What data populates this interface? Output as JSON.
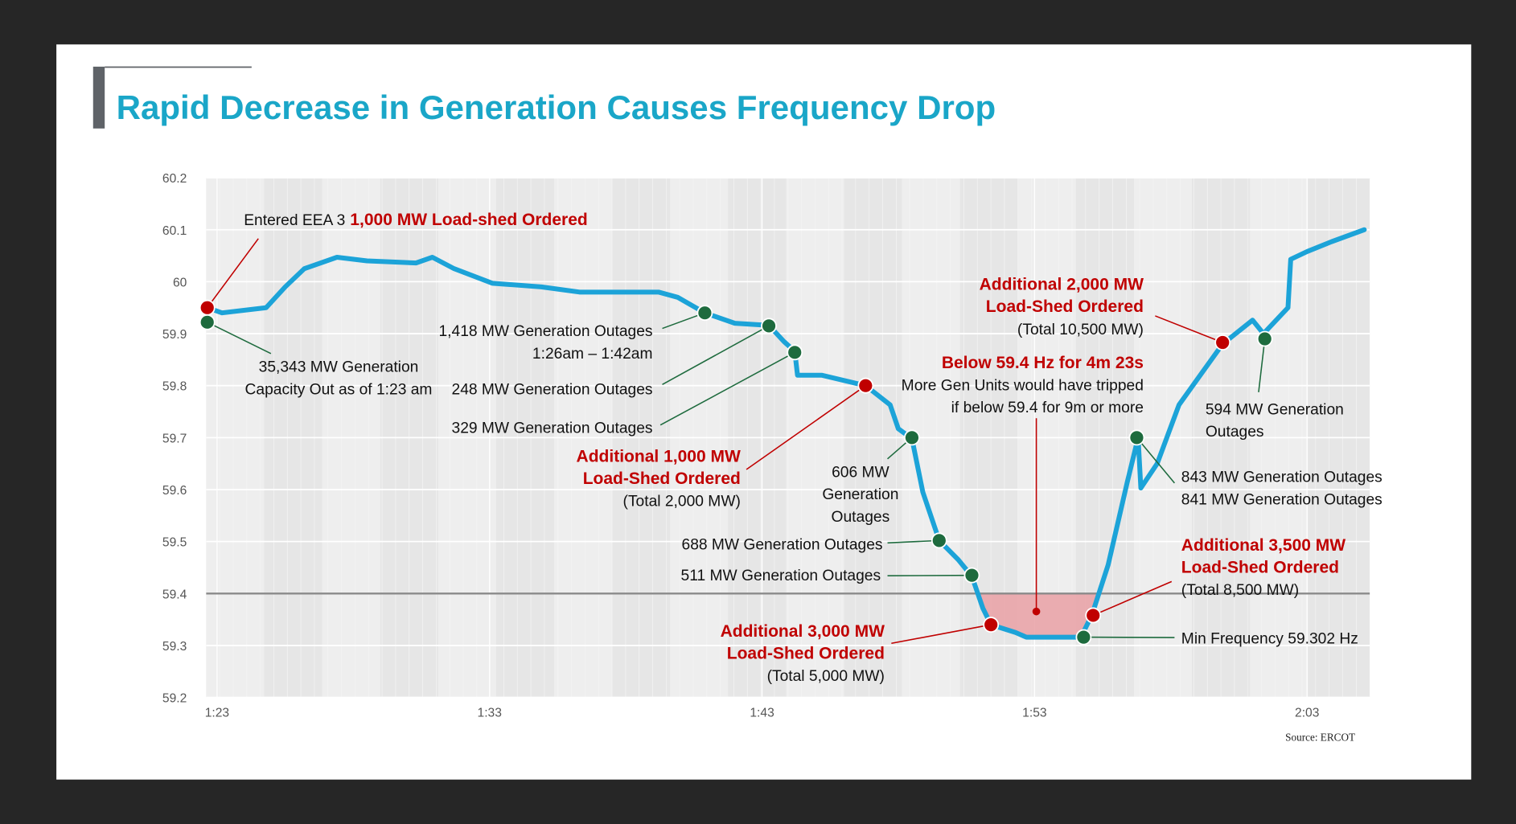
{
  "chart_data": {
    "type": "line",
    "title": "Rapid Decrease in Generation Causes Frequency Drop",
    "source": "Source: ERCOT",
    "xlim": [
      82.6,
      125.3
    ],
    "ylim": [
      59.2,
      60.2
    ],
    "xticks": [
      {
        "value": 83,
        "label": "1:23"
      },
      {
        "value": 93,
        "label": "1:33"
      },
      {
        "value": 103,
        "label": "1:43"
      },
      {
        "value": 113,
        "label": "1:53"
      },
      {
        "value": 123,
        "label": "2:03"
      }
    ],
    "yticks": [
      59.2,
      59.3,
      59.4,
      59.5,
      59.6,
      59.7,
      59.8,
      59.9,
      60,
      60.1,
      60.2
    ],
    "grid": true,
    "series": [
      {
        "color": "#1ca3d8",
        "x": [
          82.64,
          83.18,
          84.8,
          85.5,
          86.2,
          87.4,
          88.5,
          90.3,
          90.9,
          91.7,
          93.1,
          94.9,
          96.3,
          99.2,
          99.9,
          100.9,
          102.0,
          103.25,
          103.8,
          104.2,
          104.3,
          105.2,
          106.8,
          107.7,
          108.0,
          108.5,
          108.9,
          109.5,
          110.2,
          110.7,
          111.1,
          111.4,
          112.3,
          112.7,
          114.7,
          115.1,
          115.7,
          116.4,
          116.8,
          116.9,
          117.5,
          118.3,
          119.2,
          119.9,
          121.0,
          121.4,
          122.3,
          122.4,
          123.0,
          123.9,
          125.1
        ],
        "values": [
          59.95,
          59.94,
          59.95,
          59.99,
          60.025,
          60.047,
          60.04,
          60.036,
          60.047,
          60.025,
          59.997,
          59.99,
          59.98,
          59.98,
          59.97,
          59.94,
          59.92,
          59.916,
          59.885,
          59.866,
          59.82,
          59.82,
          59.8,
          59.763,
          59.717,
          59.698,
          59.595,
          59.502,
          59.465,
          59.433,
          59.372,
          59.34,
          59.325,
          59.316,
          59.316,
          59.358,
          59.455,
          59.614,
          59.7,
          59.603,
          59.65,
          59.763,
          59.829,
          59.88,
          59.926,
          59.9,
          59.95,
          60.043,
          60.058,
          60.077,
          60.1
        ]
      }
    ],
    "threshold": {
      "value": 59.4,
      "color": "#8a8a8a",
      "shade": "#e9a0a4"
    },
    "events": [
      {
        "x": 82.64,
        "y": 59.95,
        "color": "#c00000",
        "label": [
          [
            {
              "text": "Entered EEA 3"
            },
            {
              "text": "1,000 MW Load-shed Ordered",
              "color": "#c00000"
            }
          ]
        ]
      },
      {
        "x": 82.64,
        "y": 59.922,
        "color": "#1e6b3e",
        "label": [
          [
            {
              "text": "35,343 MW Generation"
            }
          ],
          [
            {
              "text": "Capacity Out as of 1:23 am"
            }
          ]
        ]
      },
      {
        "x": 100.9,
        "y": 59.94,
        "color": "#1e6b3e",
        "label": [
          [
            {
              "text": "1,418 MW Generation Outages"
            }
          ],
          [
            {
              "text": "1:26am – 1:42am"
            }
          ]
        ]
      },
      {
        "x": 103.25,
        "y": 59.915,
        "color": "#1e6b3e",
        "label": [
          [
            {
              "text": "248 MW Generation Outages"
            }
          ]
        ]
      },
      {
        "x": 104.2,
        "y": 59.864,
        "color": "#1e6b3e",
        "label": [
          [
            {
              "text": "329 MW Generation Outages"
            }
          ]
        ]
      },
      {
        "x": 106.8,
        "y": 59.8,
        "color": "#c00000",
        "label": [
          [
            {
              "text": "Additional 1,000 MW",
              "color": "#c00000"
            }
          ],
          [
            {
              "text": "Load-Shed Ordered",
              "color": "#c00000"
            }
          ],
          [
            {
              "text": "(Total 2,000 MW)"
            }
          ]
        ]
      },
      {
        "x": 108.5,
        "y": 59.7,
        "color": "#1e6b3e",
        "label": [
          [
            {
              "text": "606 MW"
            }
          ],
          [
            {
              "text": "Generation"
            }
          ],
          [
            {
              "text": "Outages"
            }
          ]
        ]
      },
      {
        "x": 109.5,
        "y": 59.502,
        "color": "#1e6b3e",
        "label": [
          [
            {
              "text": "688 MW Generation Outages"
            }
          ]
        ]
      },
      {
        "x": 110.7,
        "y": 59.435,
        "color": "#1e6b3e",
        "label": [
          [
            {
              "text": "511 MW Generation Outages"
            }
          ]
        ]
      },
      {
        "x": 111.4,
        "y": 59.34,
        "color": "#c00000",
        "label": [
          [
            {
              "text": "Additional 3,000 MW",
              "color": "#c00000"
            }
          ],
          [
            {
              "text": "Load-Shed Ordered",
              "color": "#c00000"
            }
          ],
          [
            {
              "text": "(Total 5,000 MW)"
            }
          ]
        ]
      },
      {
        "x": 114.8,
        "y": 59.316,
        "color": "#1e6b3e",
        "label": [
          [
            {
              "text": "Min Frequency 59.302 Hz"
            }
          ]
        ]
      },
      {
        "x": 115.15,
        "y": 59.358,
        "color": "#c00000",
        "label": [
          [
            {
              "text": "Additional 3,500 MW",
              "color": "#c00000"
            }
          ],
          [
            {
              "text": "Load-Shed Ordered",
              "color": "#c00000"
            }
          ],
          [
            {
              "text": "(Total 8,500 MW)"
            }
          ]
        ]
      },
      {
        "x": 116.75,
        "y": 59.7,
        "color": "#1e6b3e",
        "label": [
          [
            {
              "text": "843 MW Generation Outages"
            }
          ],
          [
            {
              "text": "841 MW Generation Outages"
            }
          ]
        ]
      },
      {
        "x": 119.9,
        "y": 59.883,
        "color": "#c00000",
        "label": [
          [
            {
              "text": "Additional 2,000 MW",
              "color": "#c00000"
            }
          ],
          [
            {
              "text": "Load-Shed Ordered",
              "color": "#c00000"
            }
          ],
          [
            {
              "text": "(Total 10,500 MW)"
            }
          ]
        ]
      },
      {
        "x": 121.45,
        "y": 59.89,
        "color": "#1e6b3e",
        "label": [
          [
            {
              "text": "594 MW Generation"
            }
          ],
          [
            {
              "text": "Outages"
            }
          ]
        ]
      }
    ],
    "note": {
      "color": "#c00000",
      "label": [
        [
          {
            "text": "Below 59.4 Hz for 4m 23s",
            "color": "#c00000"
          }
        ],
        [
          {
            "text": "More Gen Units would have tripped"
          }
        ],
        [
          {
            "text": "if below 59.4 for 9m or more"
          }
        ]
      ]
    }
  }
}
